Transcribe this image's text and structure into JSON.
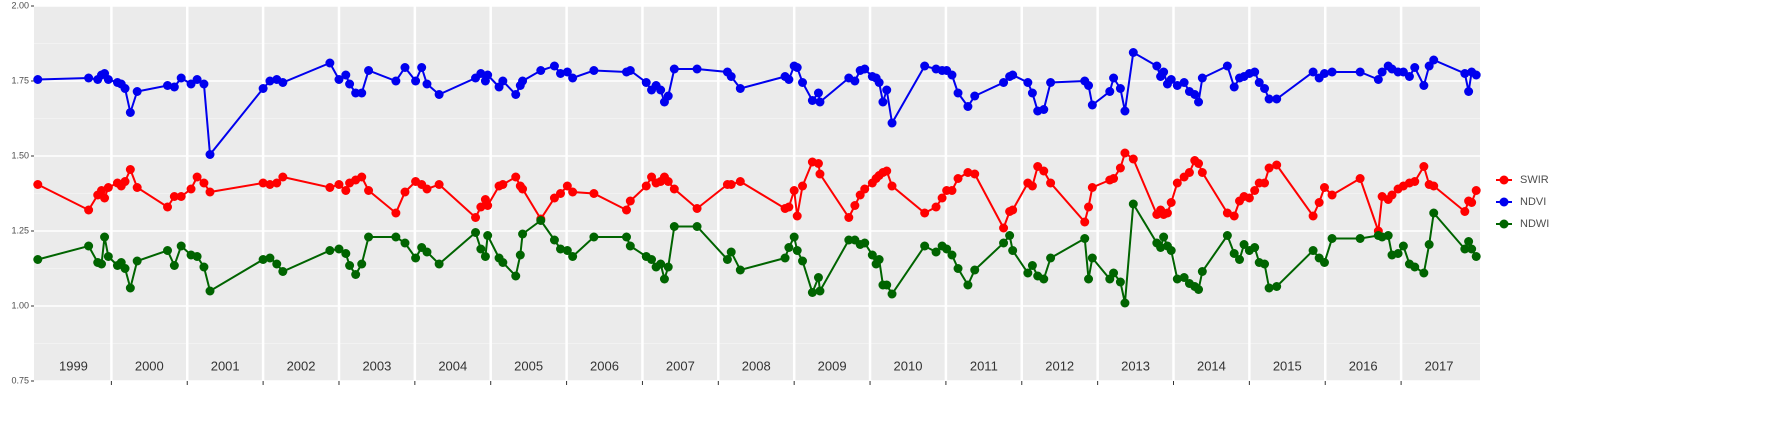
{
  "chart_data": {
    "type": "line",
    "x": [
      1999.03,
      1999.7,
      1999.82,
      1999.87,
      1999.91,
      1999.96,
      2000.08,
      2000.13,
      2000.18,
      2000.25,
      2000.34,
      2000.74,
      2000.83,
      2000.92,
      2001.05,
      2001.13,
      2001.22,
      2001.3,
      2002.0,
      2002.09,
      2002.18,
      2002.26,
      2002.88,
      2003.0,
      2003.09,
      2003.14,
      2003.22,
      2003.3,
      2003.39,
      2003.75,
      2003.87,
      2004.01,
      2004.09,
      2004.16,
      2004.32,
      2004.8,
      2004.87,
      2004.93,
      2004.96,
      2005.11,
      2005.16,
      2005.33,
      2005.39,
      2005.42,
      2005.66,
      2005.84,
      2005.92,
      2006.01,
      2006.08,
      2006.36,
      2006.79,
      2006.84,
      2007.05,
      2007.12,
      2007.18,
      2007.24,
      2007.29,
      2007.34,
      2007.42,
      2007.72,
      2008.12,
      2008.17,
      2008.29,
      2008.88,
      2008.93,
      2009.0,
      2009.04,
      2009.11,
      2009.24,
      2009.32,
      2009.34,
      2009.72,
      2009.8,
      2009.87,
      2009.93,
      2010.03,
      2010.08,
      2010.12,
      2010.17,
      2010.22,
      2010.29,
      2010.72,
      2010.87,
      2010.95,
      2011.01,
      2011.08,
      2011.16,
      2011.29,
      2011.38,
      2011.76,
      2011.84,
      2011.88,
      2012.08,
      2012.14,
      2012.21,
      2012.29,
      2012.38,
      2012.83,
      2012.88,
      2012.93,
      2013.16,
      2013.21,
      2013.3,
      2013.36,
      2013.47,
      2013.78,
      2013.83,
      2013.87,
      2013.92,
      2013.97,
      2014.05,
      2014.14,
      2014.21,
      2014.28,
      2014.33,
      2014.38,
      2014.71,
      2014.8,
      2014.87,
      2014.93,
      2015.0,
      2015.07,
      2015.13,
      2015.2,
      2015.26,
      2015.36,
      2015.84,
      2015.92,
      2015.99,
      2016.09,
      2016.46,
      2016.7,
      2016.75,
      2016.83,
      2016.88,
      2016.96,
      2017.03,
      2017.11,
      2017.18,
      2017.3,
      2017.37,
      2017.43,
      2017.84,
      2017.89,
      2017.93,
      2017.99
    ],
    "series": [
      {
        "name": "SWIR",
        "color": "#ff0000",
        "values": [
          1.405,
          1.32,
          1.37,
          1.385,
          1.36,
          1.395,
          1.41,
          1.4,
          1.415,
          1.455,
          1.395,
          1.33,
          1.365,
          1.365,
          1.39,
          1.43,
          1.41,
          1.38,
          1.41,
          1.405,
          1.41,
          1.43,
          1.395,
          1.405,
          1.385,
          1.41,
          1.42,
          1.43,
          1.385,
          1.31,
          1.38,
          1.415,
          1.405,
          1.39,
          1.405,
          1.295,
          1.33,
          1.355,
          1.335,
          1.4,
          1.405,
          1.43,
          1.4,
          1.39,
          1.29,
          1.36,
          1.375,
          1.4,
          1.38,
          1.375,
          1.32,
          1.35,
          1.4,
          1.43,
          1.41,
          1.415,
          1.43,
          1.415,
          1.39,
          1.325,
          1.405,
          1.405,
          1.415,
          1.325,
          1.33,
          1.385,
          1.3,
          1.4,
          1.48,
          1.475,
          1.44,
          1.295,
          1.335,
          1.37,
          1.39,
          1.41,
          1.425,
          1.435,
          1.445,
          1.45,
          1.4,
          1.31,
          1.33,
          1.36,
          1.385,
          1.385,
          1.425,
          1.445,
          1.44,
          1.26,
          1.315,
          1.32,
          1.41,
          1.4,
          1.465,
          1.45,
          1.41,
          1.28,
          1.33,
          1.395,
          1.42,
          1.425,
          1.46,
          1.51,
          1.49,
          1.305,
          1.32,
          1.305,
          1.31,
          1.345,
          1.41,
          1.43,
          1.445,
          1.485,
          1.475,
          1.445,
          1.31,
          1.3,
          1.35,
          1.365,
          1.36,
          1.385,
          1.41,
          1.41,
          1.46,
          1.47,
          1.3,
          1.345,
          1.395,
          1.37,
          1.425,
          1.25,
          1.365,
          1.355,
          1.37,
          1.39,
          1.4,
          1.41,
          1.415,
          1.465,
          1.405,
          1.4,
          1.315,
          1.35,
          1.345,
          1.385
        ]
      },
      {
        "name": "NDVI",
        "color": "#0000ee",
        "values": [
          1.755,
          1.76,
          1.755,
          1.77,
          1.775,
          1.755,
          1.745,
          1.74,
          1.725,
          1.645,
          1.715,
          1.735,
          1.73,
          1.76,
          1.74,
          1.755,
          1.74,
          1.505,
          1.725,
          1.75,
          1.755,
          1.745,
          1.81,
          1.755,
          1.77,
          1.74,
          1.71,
          1.71,
          1.785,
          1.75,
          1.795,
          1.75,
          1.795,
          1.74,
          1.705,
          1.76,
          1.775,
          1.75,
          1.77,
          1.73,
          1.75,
          1.705,
          1.735,
          1.75,
          1.785,
          1.8,
          1.775,
          1.78,
          1.76,
          1.785,
          1.78,
          1.785,
          1.745,
          1.72,
          1.735,
          1.72,
          1.68,
          1.7,
          1.79,
          1.79,
          1.78,
          1.765,
          1.725,
          1.765,
          1.755,
          1.8,
          1.795,
          1.745,
          1.685,
          1.71,
          1.68,
          1.76,
          1.75,
          1.785,
          1.79,
          1.765,
          1.76,
          1.745,
          1.68,
          1.72,
          1.61,
          1.8,
          1.79,
          1.785,
          1.785,
          1.77,
          1.71,
          1.665,
          1.7,
          1.745,
          1.765,
          1.77,
          1.745,
          1.71,
          1.65,
          1.655,
          1.745,
          1.75,
          1.735,
          1.67,
          1.715,
          1.76,
          1.725,
          1.65,
          1.845,
          1.8,
          1.765,
          1.78,
          1.74,
          1.755,
          1.735,
          1.745,
          1.715,
          1.705,
          1.68,
          1.76,
          1.8,
          1.73,
          1.76,
          1.765,
          1.775,
          1.78,
          1.745,
          1.725,
          1.69,
          1.69,
          1.78,
          1.76,
          1.775,
          1.78,
          1.78,
          1.755,
          1.78,
          1.8,
          1.79,
          1.78,
          1.78,
          1.765,
          1.795,
          1.735,
          1.8,
          1.82,
          1.775,
          1.715,
          1.78,
          1.77
        ]
      },
      {
        "name": "NDWI",
        "color": "#006400",
        "values": [
          1.155,
          1.2,
          1.145,
          1.14,
          1.23,
          1.165,
          1.135,
          1.145,
          1.125,
          1.06,
          1.15,
          1.185,
          1.135,
          1.2,
          1.17,
          1.165,
          1.13,
          1.05,
          1.155,
          1.16,
          1.14,
          1.115,
          1.185,
          1.19,
          1.175,
          1.135,
          1.105,
          1.14,
          1.23,
          1.23,
          1.21,
          1.16,
          1.195,
          1.18,
          1.14,
          1.245,
          1.19,
          1.165,
          1.235,
          1.16,
          1.145,
          1.1,
          1.17,
          1.24,
          1.285,
          1.22,
          1.19,
          1.185,
          1.165,
          1.23,
          1.23,
          1.2,
          1.165,
          1.155,
          1.13,
          1.14,
          1.09,
          1.13,
          1.265,
          1.265,
          1.155,
          1.18,
          1.12,
          1.16,
          1.195,
          1.23,
          1.185,
          1.15,
          1.045,
          1.095,
          1.05,
          1.22,
          1.22,
          1.205,
          1.21,
          1.17,
          1.14,
          1.155,
          1.07,
          1.07,
          1.04,
          1.2,
          1.18,
          1.2,
          1.19,
          1.17,
          1.125,
          1.07,
          1.12,
          1.21,
          1.235,
          1.185,
          1.11,
          1.135,
          1.1,
          1.09,
          1.16,
          1.225,
          1.09,
          1.16,
          1.09,
          1.11,
          1.08,
          1.01,
          1.34,
          1.21,
          1.195,
          1.23,
          1.2,
          1.185,
          1.09,
          1.095,
          1.075,
          1.065,
          1.055,
          1.115,
          1.235,
          1.175,
          1.155,
          1.205,
          1.185,
          1.195,
          1.145,
          1.14,
          1.06,
          1.065,
          1.185,
          1.16,
          1.145,
          1.225,
          1.225,
          1.235,
          1.23,
          1.235,
          1.17,
          1.175,
          1.2,
          1.14,
          1.13,
          1.11,
          1.205,
          1.31,
          1.19,
          1.215,
          1.19,
          1.165
        ]
      }
    ],
    "xlim": [
      1998.98,
      2018.04
    ],
    "xticks": [
      2000,
      2001,
      2002,
      2003,
      2004,
      2005,
      2006,
      2007,
      2008,
      2009,
      2010,
      2011,
      2012,
      2013,
      2014,
      2015,
      2016,
      2017
    ],
    "year_labels": [
      {
        "value": 1999.5,
        "label": "1999"
      },
      {
        "value": 2000.5,
        "label": "2000"
      },
      {
        "value": 2001.5,
        "label": "2001"
      },
      {
        "value": 2002.5,
        "label": "2002"
      },
      {
        "value": 2003.5,
        "label": "2003"
      },
      {
        "value": 2004.5,
        "label": "2004"
      },
      {
        "value": 2005.5,
        "label": "2005"
      },
      {
        "value": 2006.5,
        "label": "2006"
      },
      {
        "value": 2007.5,
        "label": "2007"
      },
      {
        "value": 2008.5,
        "label": "2008"
      },
      {
        "value": 2009.5,
        "label": "2009"
      },
      {
        "value": 2010.5,
        "label": "2010"
      },
      {
        "value": 2011.5,
        "label": "2011"
      },
      {
        "value": 2012.5,
        "label": "2012"
      },
      {
        "value": 2013.5,
        "label": "2013"
      },
      {
        "value": 2014.5,
        "label": "2014"
      },
      {
        "value": 2015.5,
        "label": "2015"
      },
      {
        "value": 2016.5,
        "label": "2016"
      },
      {
        "value": 2017.5,
        "label": "2017"
      }
    ],
    "ylim": [
      0.75,
      2.0
    ],
    "yticks": [
      {
        "value": 0.75,
        "label": "0.75"
      },
      {
        "value": 1.0,
        "label": "1.00"
      },
      {
        "value": 1.25,
        "label": "1.25"
      },
      {
        "value": 1.5,
        "label": "1.50"
      },
      {
        "value": 1.75,
        "label": "1.75"
      },
      {
        "value": 2.0,
        "label": "2.00"
      }
    ],
    "grid": true,
    "legend": "right"
  }
}
